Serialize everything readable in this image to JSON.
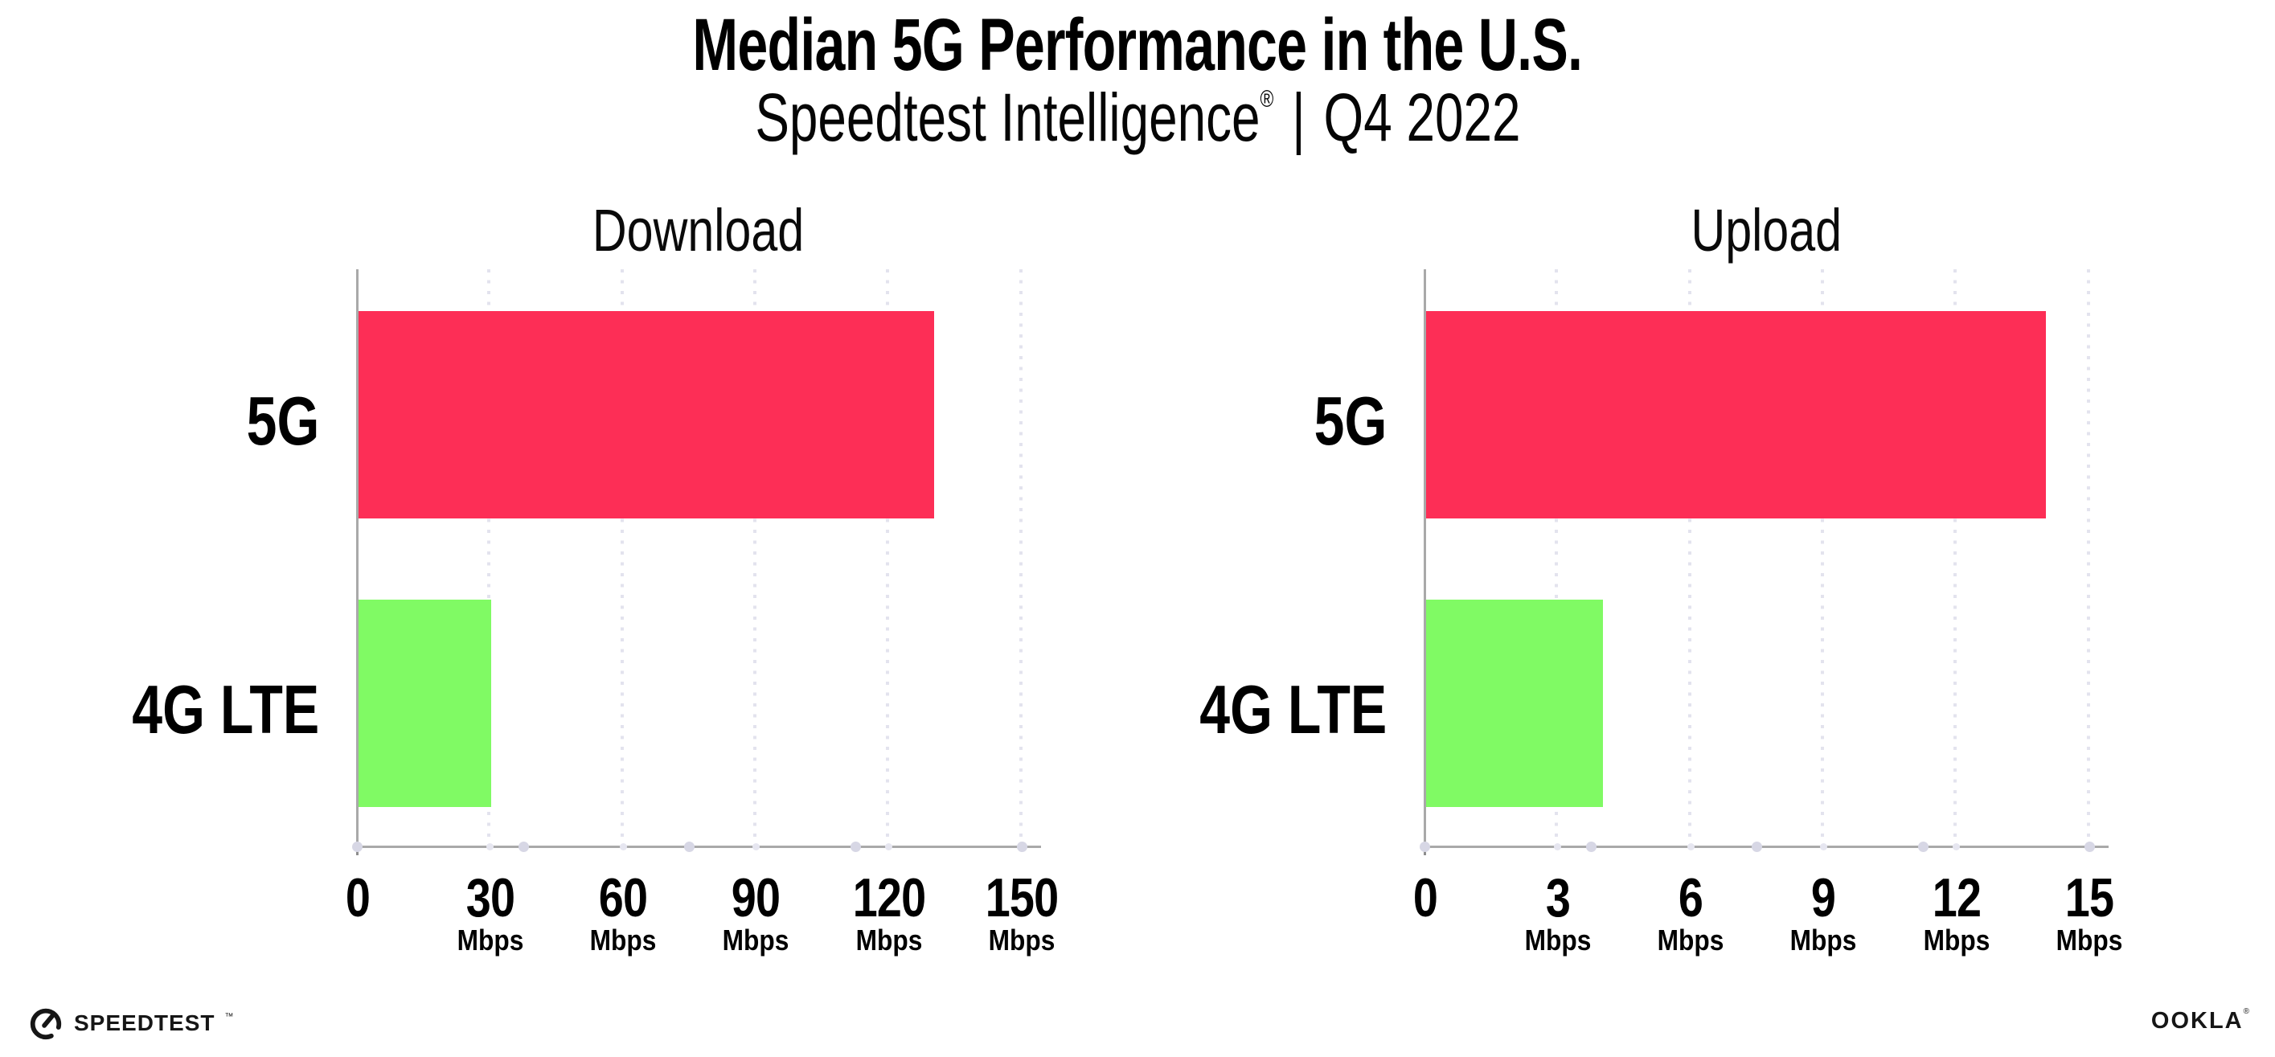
{
  "title": "Median 5G Performance in the U.S.",
  "subtitle": {
    "brand": "Speedtest Intelligence",
    "registered_mark": "®",
    "separator": "|",
    "period": "Q4 2022"
  },
  "footer": {
    "speedtest_wordmark": "SPEEDTEST",
    "speedtest_trademark": "™",
    "ookla_wordmark": "OOKLA",
    "ookla_registered": "®"
  },
  "colors": {
    "bar_5g": "#fd2e56",
    "bar_4g_lte": "#80fa64",
    "axis": "#a9a9a9",
    "gridline": "#e3e3ee",
    "grid_base_dot": "#e6e6f0",
    "axis_quarter_dot": "#d7d7e5",
    "text": "#000000"
  },
  "chart_data": [
    {
      "type": "bar",
      "orientation": "horizontal",
      "title": "Download",
      "categories": [
        "5G",
        "4G LTE"
      ],
      "values": [
        130,
        30
      ],
      "unit": "Mbps",
      "xlim": [
        0,
        150
      ],
      "xticks": [
        0,
        30,
        60,
        90,
        120,
        150
      ],
      "xtick_unit": "Mbps",
      "bar_colors": [
        "#fd2e56",
        "#80fa64"
      ],
      "grid": "vertical-dotted",
      "legend": "none"
    },
    {
      "type": "bar",
      "orientation": "horizontal",
      "title": "Upload",
      "categories": [
        "5G",
        "4G LTE"
      ],
      "values": [
        14,
        4
      ],
      "unit": "Mbps",
      "xlim": [
        0,
        15
      ],
      "xticks": [
        0,
        3,
        6,
        9,
        12,
        15
      ],
      "xtick_unit": "Mbps",
      "bar_colors": [
        "#fd2e56",
        "#80fa64"
      ],
      "grid": "vertical-dotted",
      "legend": "none"
    }
  ]
}
